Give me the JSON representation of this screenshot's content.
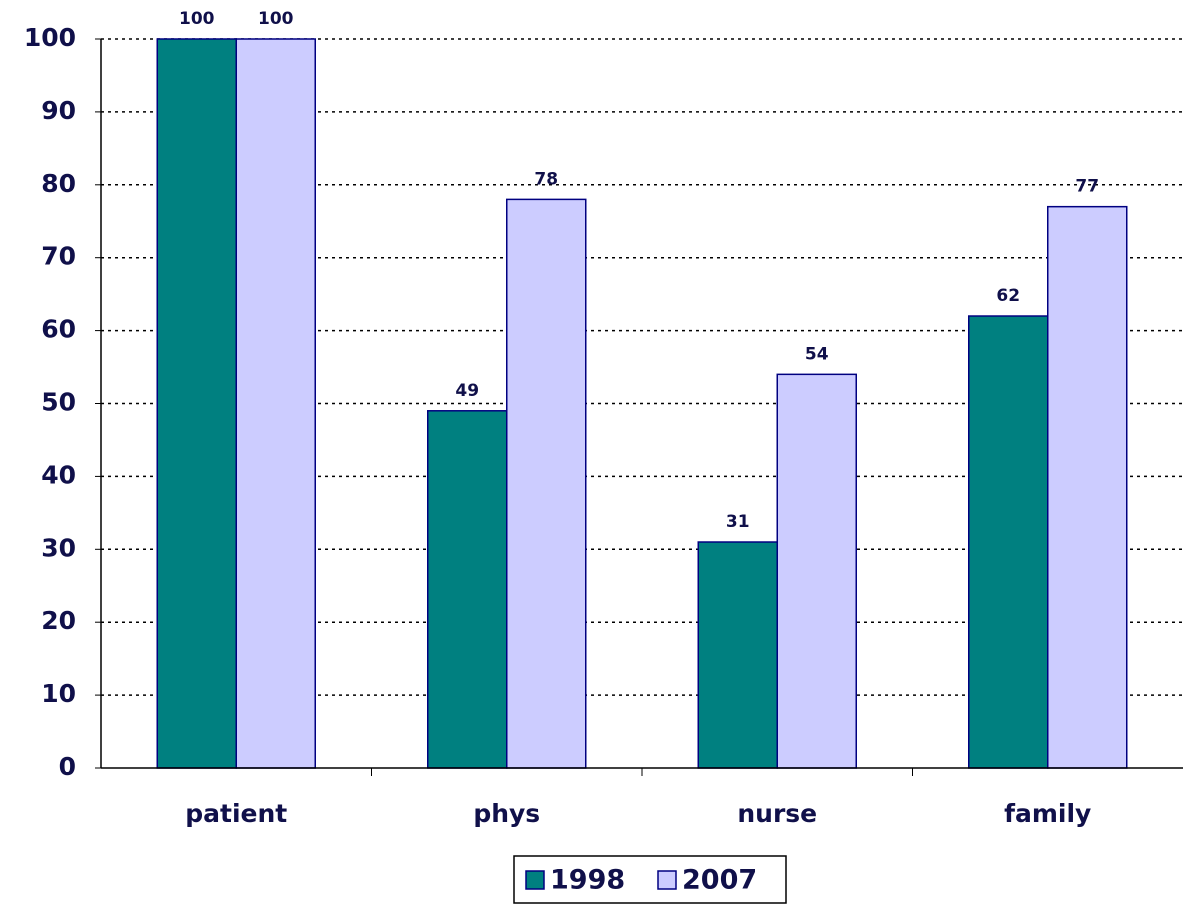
{
  "chart_data": {
    "type": "bar",
    "categories": [
      "patient",
      "phys",
      "nurse",
      "family"
    ],
    "series": [
      {
        "name": "1998",
        "color": "#008080",
        "values": [
          100,
          49,
          31,
          62
        ]
      },
      {
        "name": "2007",
        "color": "#ccccff",
        "values": [
          100,
          78,
          54,
          77
        ]
      }
    ],
    "ylim": [
      0,
      100
    ],
    "yticks": [
      0,
      10,
      20,
      30,
      40,
      50,
      60,
      70,
      80,
      90,
      100
    ],
    "grid": true,
    "legend": "bottom"
  }
}
